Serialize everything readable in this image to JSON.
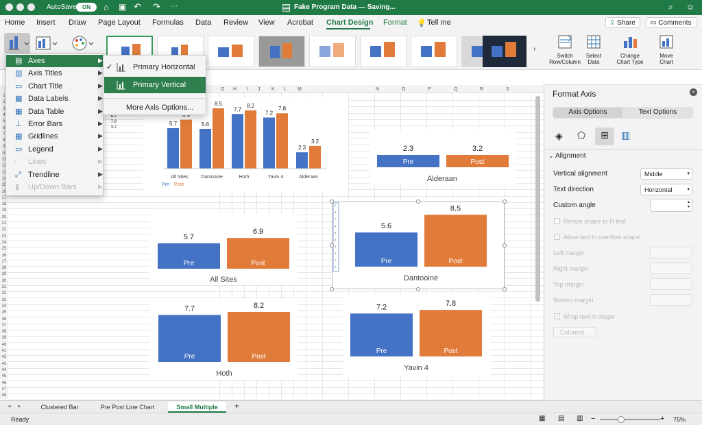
{
  "window": {
    "autosave_label": "AutoSave",
    "autosave_state": "ON",
    "title": "Fake Program Data — Saving..."
  },
  "ribbon_tabs": [
    "Home",
    "Insert",
    "Draw",
    "Page Layout",
    "Formulas",
    "Data",
    "Review",
    "View",
    "Acrobat",
    "Chart Design",
    "Format"
  ],
  "tell_me": "Tell me",
  "share_label": "Share",
  "comments_label": "Comments",
  "ribbon_buttons": {
    "switch": [
      "Switch",
      "Row/Column"
    ],
    "select": [
      "Select",
      "Data"
    ],
    "change": [
      "Change",
      "Chart Type"
    ],
    "move": [
      "Move",
      "Chart"
    ]
  },
  "add_element_menu": [
    {
      "label": "Axes",
      "enabled": true,
      "icon": "axes-icon"
    },
    {
      "label": "Axis Titles",
      "enabled": true,
      "icon": "axis-titles-icon"
    },
    {
      "label": "Chart Title",
      "enabled": true,
      "icon": "chart-title-icon"
    },
    {
      "label": "Data Labels",
      "enabled": true,
      "icon": "data-labels-icon"
    },
    {
      "label": "Data Table",
      "enabled": true,
      "icon": "data-table-icon"
    },
    {
      "label": "Error Bars",
      "enabled": true,
      "icon": "error-bars-icon"
    },
    {
      "label": "Gridlines",
      "enabled": true,
      "icon": "gridlines-icon"
    },
    {
      "label": "Legend",
      "enabled": true,
      "icon": "legend-icon"
    },
    {
      "label": "Lines",
      "enabled": false,
      "icon": "lines-icon"
    },
    {
      "label": "Trendline",
      "enabled": true,
      "icon": "trendline-icon"
    },
    {
      "label": "Up/Down Bars",
      "enabled": false,
      "icon": "updown-bars-icon"
    }
  ],
  "axes_submenu": {
    "items": [
      {
        "label": "Primary Horizontal",
        "checked": true
      },
      {
        "label": "Primary Vertical",
        "checked": false
      }
    ],
    "more": "More Axis Options..."
  },
  "columns": [
    "G",
    "H",
    "I",
    "J",
    "K",
    "L",
    "M",
    "N",
    "O",
    "P",
    "Q",
    "R",
    "S"
  ],
  "cell_values": [
    "8.2",
    "7.8",
    "3.2"
  ],
  "format_axis": {
    "title": "Format Axis",
    "tabs": [
      "Axis Options",
      "Text Options"
    ],
    "section": "Alignment",
    "vertical_alignment_label": "Vertical alignment",
    "vertical_alignment_value": "Middle",
    "text_direction_label": "Text direction",
    "text_direction_value": "Horizontal",
    "custom_angle_label": "Custom angle",
    "resize_label": "Resize shape to fit text",
    "overflow_label": "Allow text to overflow shape",
    "margins": [
      "Left margin",
      "Right margin",
      "Top margin",
      "Bottom margin"
    ],
    "wrap_label": "Wrap text in shape",
    "columns_button": "Columns..."
  },
  "sheet_tabs": [
    "Clustered Bar",
    "Pre Post Line Chart",
    "Small Multiple"
  ],
  "active_sheet_tab": "Small Multiple",
  "status": "Ready",
  "zoom": "75%",
  "colors": {
    "pre": "#4472c4",
    "post": "#e07b39",
    "accent": "#1f7a45"
  },
  "chart_data": [
    {
      "type": "bar",
      "categories": [
        "All Sites",
        "Dantooine",
        "Hoth",
        "Yavin 4",
        "Alderaan"
      ],
      "series": [
        {
          "name": "Pre",
          "values": [
            5.7,
            5.6,
            7.7,
            7.2,
            2.3
          ]
        },
        {
          "name": "Post",
          "values": [
            6.9,
            8.5,
            8.2,
            7.8,
            3.2
          ]
        }
      ],
      "legend": "bottom-left"
    },
    {
      "type": "bar",
      "categories": [
        "Pre",
        "Post"
      ],
      "values": [
        2.3,
        3.2
      ],
      "title": "Alderaan"
    },
    {
      "type": "bar",
      "categories": [
        "Pre",
        "Post"
      ],
      "values": [
        5.7,
        6.9
      ],
      "title": "All Sites"
    },
    {
      "type": "bar",
      "categories": [
        "Pre",
        "Post"
      ],
      "values": [
        5.6,
        8.5
      ],
      "title": "Dantooine"
    },
    {
      "type": "bar",
      "categories": [
        "Pre",
        "Post"
      ],
      "values": [
        7.7,
        8.2
      ],
      "title": "Hoth"
    },
    {
      "type": "bar",
      "categories": [
        "Pre",
        "Post"
      ],
      "values": [
        7.2,
        7.8
      ],
      "title": "Yavin 4"
    }
  ]
}
